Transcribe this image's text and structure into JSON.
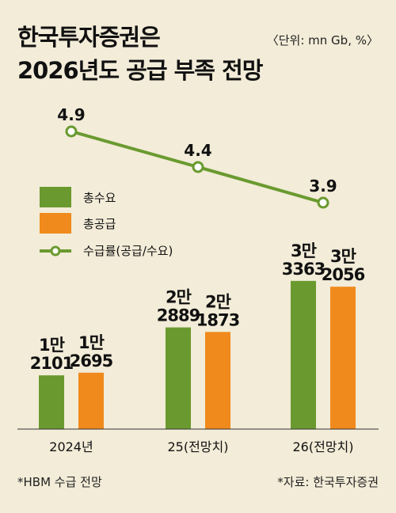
{
  "header": {
    "title_line1": "한국투자증권은",
    "title_line2": "2026년도 공급 부족 전망",
    "unit": "〈단위: mn Gb, %〉"
  },
  "footnotes": {
    "left": "*HBM 수급 전망",
    "right": "*자료: 한국투자증권"
  },
  "colors": {
    "background": "#f2ecd8",
    "demand": "#6a9a2f",
    "supply": "#f08a1c",
    "rate_line": "#6a9a2f"
  },
  "chart_data": {
    "type": "bar",
    "categories": [
      "2024년",
      "25(전망치)",
      "26(전망치)"
    ],
    "series": [
      {
        "name": "총수요",
        "values": [
          12101,
          22889,
          33363
        ],
        "labels": [
          [
            "1만",
            "2101"
          ],
          [
            "2만",
            "2889"
          ],
          [
            "3만",
            "3363"
          ]
        ]
      },
      {
        "name": "총공급",
        "values": [
          12695,
          21873,
          32056
        ],
        "labels": [
          [
            "1만",
            "2695"
          ],
          [
            "2만",
            "1873"
          ],
          [
            "3만",
            "2056"
          ]
        ]
      }
    ],
    "line_series": {
      "name": "수급률(공급/수요)",
      "values": [
        4.9,
        4.4,
        3.9
      ]
    },
    "legend_position": "left",
    "grid": false
  }
}
